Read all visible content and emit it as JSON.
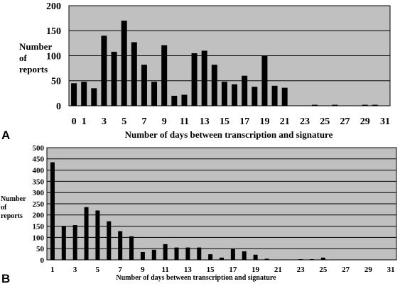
{
  "colors": {
    "plot_bg": "#c0c0c0",
    "bar": "#000000",
    "grid": "#000000"
  },
  "chart_data": [
    {
      "panel": "A",
      "type": "bar",
      "xlabel": "Number of days between transcription and signature",
      "ylabel_lines": [
        "Number",
        "of",
        "reports"
      ],
      "ylim": [
        0,
        200
      ],
      "y_ticks": [
        0,
        50,
        100,
        150,
        200
      ],
      "x_tick_labels": [
        "0",
        "1",
        "3",
        "5",
        "7",
        "9",
        "11",
        "13",
        "15",
        "17",
        "19",
        "21",
        "23",
        "25",
        "27",
        "29",
        "31"
      ],
      "grid": true,
      "categories": [
        0,
        1,
        2,
        3,
        4,
        5,
        6,
        7,
        8,
        9,
        10,
        11,
        12,
        13,
        14,
        15,
        16,
        17,
        18,
        19,
        20,
        21,
        22,
        23,
        24,
        25,
        26,
        27,
        28,
        29,
        30,
        31
      ],
      "values": [
        45,
        48,
        35,
        140,
        108,
        170,
        127,
        82,
        48,
        121,
        20,
        22,
        105,
        110,
        82,
        48,
        43,
        60,
        38,
        100,
        40,
        36,
        0,
        0,
        2,
        0,
        2,
        0,
        0,
        2,
        2,
        0
      ]
    },
    {
      "panel": "B",
      "type": "bar",
      "xlabel": "Number of days between transcription and signature",
      "ylabel_lines": [
        "Number",
        "of",
        "reports"
      ],
      "ylim": [
        0,
        500
      ],
      "y_ticks": [
        0,
        50,
        100,
        150,
        200,
        250,
        300,
        350,
        400,
        450,
        500
      ],
      "x_tick_labels": [
        "1",
        "3",
        "5",
        "7",
        "9",
        "11",
        "13",
        "15",
        "17",
        "19",
        "21",
        "23",
        "25",
        "27",
        "29",
        "31"
      ],
      "grid": true,
      "categories": [
        1,
        2,
        3,
        4,
        5,
        6,
        7,
        8,
        9,
        10,
        11,
        12,
        13,
        14,
        15,
        16,
        17,
        18,
        19,
        20,
        21,
        22,
        23,
        24,
        25,
        26,
        27,
        28,
        29,
        30,
        31
      ],
      "values": [
        435,
        150,
        155,
        235,
        220,
        172,
        128,
        105,
        35,
        45,
        70,
        55,
        55,
        55,
        25,
        10,
        48,
        38,
        23,
        5,
        0,
        0,
        3,
        3,
        10,
        0,
        0,
        0,
        0,
        0,
        0
      ]
    }
  ]
}
